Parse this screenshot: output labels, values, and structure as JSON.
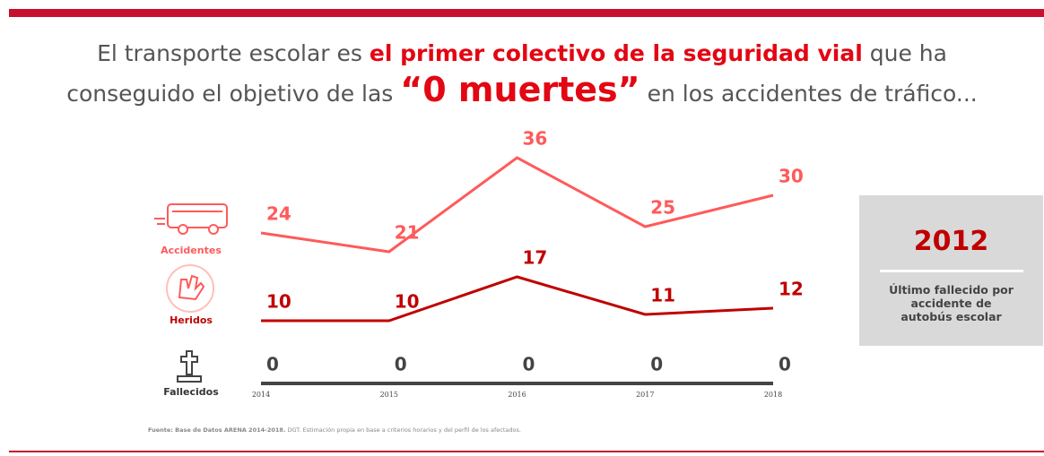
{
  "chart_data": {
    "type": "line",
    "title_parts": [
      "El transporte escolar es ",
      "el primer colectivo de la seguridad vial",
      " que ha",
      "conseguido el objetivo de las ",
      "“0 muertes”",
      " en los accidentes de tráfico..."
    ],
    "categories": [
      "2014",
      "2015",
      "2016",
      "2017",
      "2018"
    ],
    "series": [
      {
        "name": "Accidentes",
        "color": "#ff5a5a",
        "values": [
          24,
          21,
          36,
          25,
          30
        ]
      },
      {
        "name": "Heridos",
        "color": "#c00000",
        "values": [
          10,
          10,
          17,
          11,
          12
        ]
      },
      {
        "name": "Fallecidos",
        "color": "#444444",
        "values": [
          0,
          0,
          0,
          0,
          0
        ]
      }
    ],
    "ylim": [
      0,
      40
    ],
    "highlight": {
      "value": "2012",
      "text": "Último fallecido por accidente de autobús escolar"
    },
    "source_label": "Fuente: Base de Datos ARENA 2014-2018.",
    "source_text": " DGT. Estimación propia en base a criterios horarios y del perfil de los afectados."
  }
}
